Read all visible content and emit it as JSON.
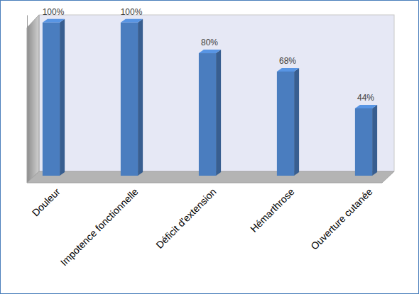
{
  "chart_data": {
    "type": "bar",
    "categories": [
      "Douleur",
      "Impotence fonctionnelle",
      "Déficit d'extension",
      "Hémarthrose",
      "Ouverture cutanée"
    ],
    "values": [
      100,
      100,
      80,
      68,
      44
    ],
    "value_labels": [
      "100%",
      "100%",
      "80%",
      "68%",
      "44%"
    ],
    "color": "#4a7dbf",
    "ylim": [
      0,
      105
    ],
    "yticks": [],
    "grid": false,
    "data_labels": true,
    "tick_labels": "x"
  }
}
